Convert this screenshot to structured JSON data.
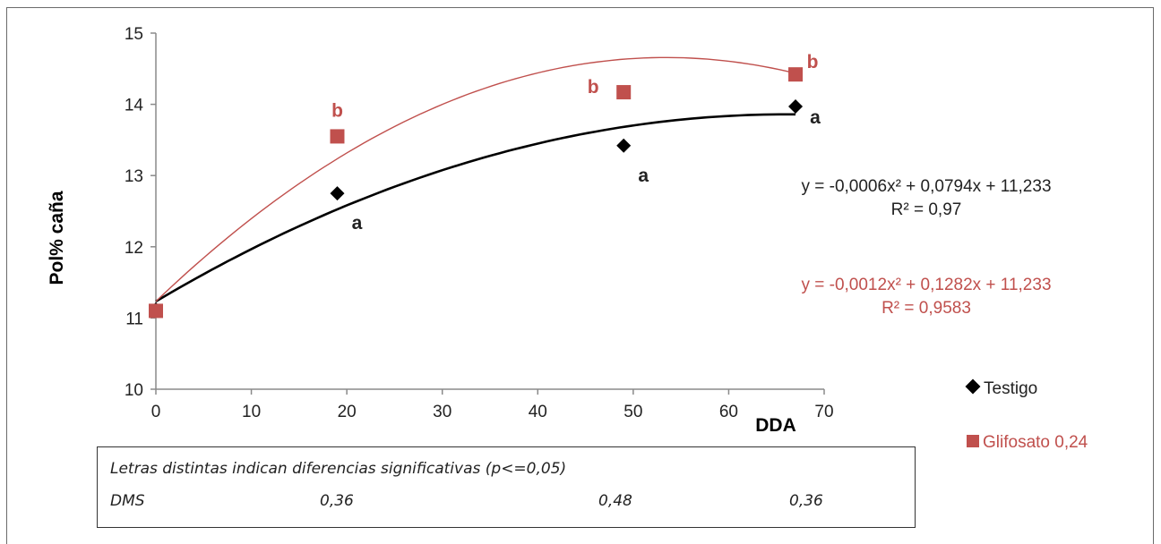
{
  "chart_data": {
    "type": "scatter",
    "xlabel": "DDA",
    "ylabel": "Pol% caña",
    "xlim": [
      0,
      70
    ],
    "ylim": [
      10,
      15
    ],
    "x_ticks": [
      0,
      10,
      20,
      30,
      40,
      50,
      60,
      70
    ],
    "y_ticks": [
      10,
      11,
      12,
      13,
      14,
      15
    ],
    "grid": false,
    "legend_position": "right",
    "series": [
      {
        "name": "Testigo",
        "marker": "diamond",
        "color": "#000000",
        "x": [
          0,
          19,
          49,
          67
        ],
        "y": [
          11.12,
          12.75,
          13.42,
          13.97
        ],
        "letters": [
          "",
          "a",
          "a",
          "a"
        ],
        "trend": {
          "a": -0.0006,
          "b": 0.0794,
          "c": 11.233,
          "x_range": [
            0,
            67
          ],
          "color": "#000000"
        },
        "equation": "y = -0,0006x² + 0,0794x  + 11,233",
        "r2": "R² = 0,97"
      },
      {
        "name": "Glifosato 0,24",
        "marker": "square",
        "color": "#c0504d",
        "x": [
          0,
          19,
          49,
          67
        ],
        "y": [
          11.1,
          13.55,
          14.17,
          14.42
        ],
        "letters": [
          "",
          "b",
          "b",
          "b"
        ],
        "trend": {
          "a": -0.0012,
          "b": 0.1282,
          "c": 11.233,
          "x_range": [
            0,
            67
          ],
          "color": "#c0504d"
        },
        "equation": "y = -0,0012x² + 0,1282x  + 11,233",
        "r2": "R² = 0,9583"
      }
    ],
    "note": {
      "title": "Letras distintas indican diferencias significativas (p<=0,05)",
      "dms_label": "DMS",
      "dms_values": [
        "0,36",
        "0,48",
        "0,36"
      ]
    }
  }
}
